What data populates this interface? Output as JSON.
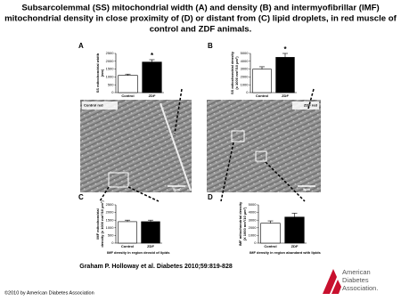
{
  "title": [
    "Subsarcolemmal (SS) mitochondrial width (A) and density (B) and intermyofibrillar (IMF)",
    "mitochondrial density in close proximity of (D) or distant from (C) lipid droplets, in red muscle of",
    "control and ZDF animals."
  ],
  "chart_data": [
    {
      "type": "bar",
      "panel": "A",
      "ylabel": [
        "SS mitochondrial width",
        "(nm)"
      ],
      "categories": [
        "Control",
        "ZDF"
      ],
      "values": [
        1100,
        1950
      ],
      "errors": [
        80,
        150
      ],
      "bar_labels": [
        null,
        "*"
      ],
      "colors": [
        "#ffffff",
        "#000000"
      ],
      "ylim": [
        0,
        2500
      ],
      "yticks": [
        0,
        500,
        1000,
        1500,
        2000,
        2500
      ]
    },
    {
      "type": "bar",
      "panel": "B",
      "ylabel": [
        "SS mitochondrial density",
        "(x 1000 nm²/10 µm²)"
      ],
      "categories": [
        "Control",
        "ZDF"
      ],
      "values": [
        3000,
        4500
      ],
      "errors": [
        300,
        500
      ],
      "bar_labels": [
        null,
        "*"
      ],
      "colors": [
        "#ffffff",
        "#000000"
      ],
      "ylim": [
        0,
        5000
      ],
      "yticks": [
        0,
        1000,
        2000,
        3000,
        4000,
        5000
      ]
    },
    {
      "type": "bar",
      "panel": "C",
      "ylabel": [
        "IMF mitochondrial",
        "density (x 1000 nm²/10 µm²)"
      ],
      "xlabel": "IMF density in region devoid of lipids",
      "categories": [
        "Control",
        "ZDF"
      ],
      "values": [
        1400,
        1400
      ],
      "errors": [
        100,
        100
      ],
      "bar_labels": [
        null,
        null
      ],
      "colors": [
        "#ffffff",
        "#000000"
      ],
      "ylim": [
        0,
        2500
      ],
      "yticks": [
        0,
        500,
        1000,
        1500,
        2000,
        2500
      ]
    },
    {
      "type": "bar",
      "panel": "D",
      "ylabel": [
        "IMF mitochondrial density",
        "(X 1000 nm²/10 µm²)"
      ],
      "xlabel": "IMF density in region abundant with lipids",
      "categories": [
        "Control",
        "ZDF"
      ],
      "values": [
        2600,
        3400
      ],
      "errors": [
        300,
        500
      ],
      "bar_labels": [
        null,
        null
      ],
      "colors": [
        "#ffffff",
        "#000000"
      ],
      "ylim": [
        0,
        5000
      ],
      "yticks": [
        0,
        1000,
        2000,
        3000,
        4000,
        5000
      ]
    }
  ],
  "micrographs": [
    {
      "label": "Control red",
      "scale": "5µm"
    },
    {
      "label": "ZDF red",
      "scale": "5µm"
    }
  ],
  "citation": "Graham P. Holloway et al. Diabetes 2010;59:819-828",
  "copyright": "©2010 by American Diabetes Association",
  "logo": [
    "American",
    "Diabetes",
    "Association."
  ]
}
